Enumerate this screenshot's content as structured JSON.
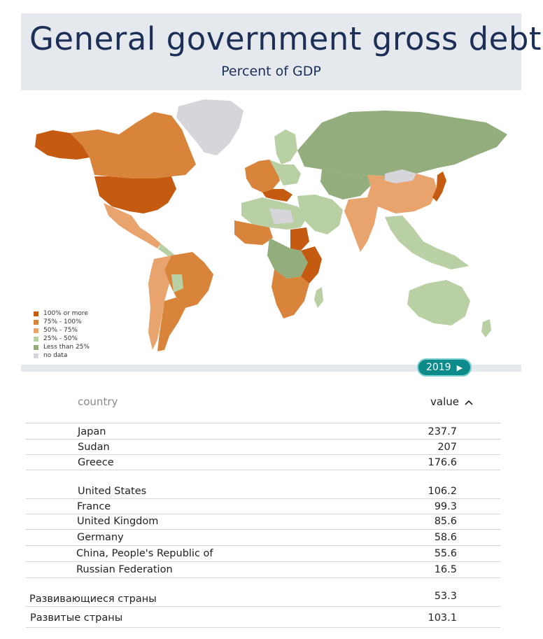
{
  "header": {
    "title": "General government gross debt",
    "subtitle": "Percent of GDP"
  },
  "legend": [
    {
      "label": "100% or more",
      "color": "#c55a11"
    },
    {
      "label": "75% - 100%",
      "color": "#d8853b"
    },
    {
      "label": "50% - 75%",
      "color": "#e8a46c"
    },
    {
      "label": "25% - 50%",
      "color": "#b8d0a3"
    },
    {
      "label": "Less than 25%",
      "color": "#93ad7d"
    },
    {
      "label": "no data",
      "color": "#d5d5da"
    }
  ],
  "timeline": {
    "year": "2019"
  },
  "table": {
    "columns": {
      "country": "country",
      "value": "value"
    },
    "sort_indicator": "^",
    "rows": [
      {
        "name": "Japan",
        "value": "237.7"
      },
      {
        "name": "Sudan",
        "value": "207"
      },
      {
        "name": "Greece",
        "value": "176.6"
      },
      {
        "name": "United States",
        "value": "106.2"
      },
      {
        "name": "France",
        "value": "99.3"
      },
      {
        "name": "United Kingdom",
        "value": "85.6"
      },
      {
        "name": "Germany",
        "value": "58.6"
      },
      {
        "name": "China, People's Republic of",
        "value": "55.6"
      },
      {
        "name": "Russian Federation",
        "value": "16.5"
      }
    ],
    "groups": [
      {
        "name": "Развивающиеся страны",
        "value": "53.3"
      },
      {
        "name": "Развитые страны",
        "value": "103.1"
      }
    ]
  }
}
